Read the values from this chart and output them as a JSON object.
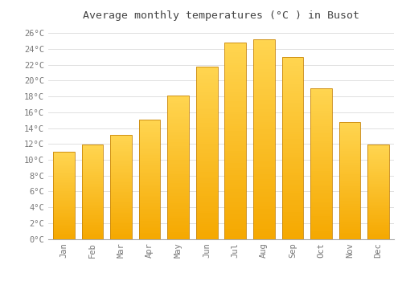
{
  "title": "Average monthly temperatures (°C ) in Busot",
  "months": [
    "Jan",
    "Feb",
    "Mar",
    "Apr",
    "May",
    "Jun",
    "Jul",
    "Aug",
    "Sep",
    "Oct",
    "Nov",
    "Dec"
  ],
  "values": [
    11.0,
    11.9,
    13.1,
    15.1,
    18.1,
    21.8,
    24.8,
    25.2,
    23.0,
    19.0,
    14.8,
    11.9
  ],
  "bar_color_bottom": "#F5A800",
  "bar_color_mid": "#FFBE00",
  "bar_color_top": "#FFD040",
  "bar_edge_color": "#C8860A",
  "background_color": "#ffffff",
  "grid_color": "#e0e0e0",
  "text_color": "#777777",
  "title_color": "#444444",
  "ylim_max": 27,
  "bar_width": 0.75,
  "title_fontsize": 9.5,
  "tick_fontsize": 7.5
}
